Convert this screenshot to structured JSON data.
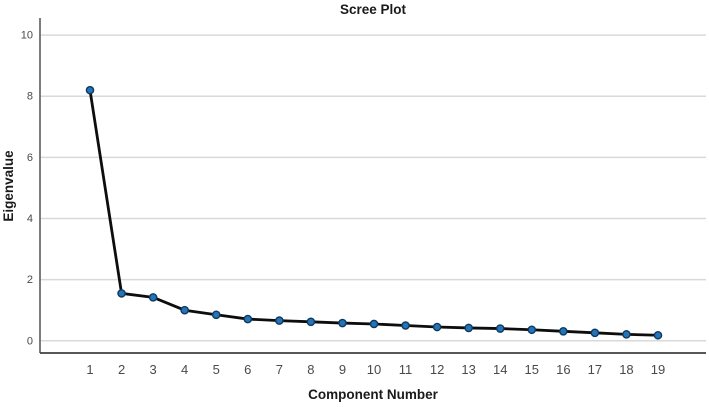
{
  "chart_data": {
    "type": "line",
    "title": "Scree Plot",
    "xlabel": "Component Number",
    "ylabel": "Eigenvalue",
    "series_name": "Eigenvalue",
    "x": [
      1,
      2,
      3,
      4,
      5,
      6,
      7,
      8,
      9,
      10,
      11,
      12,
      13,
      14,
      15,
      16,
      17,
      18,
      19
    ],
    "values": [
      8.2,
      1.55,
      1.42,
      1.0,
      0.85,
      0.71,
      0.66,
      0.62,
      0.58,
      0.55,
      0.5,
      0.45,
      0.42,
      0.4,
      0.36,
      0.31,
      0.26,
      0.21,
      0.18
    ],
    "x_ticks": [
      "1",
      "2",
      "3",
      "4",
      "5",
      "6",
      "7",
      "8",
      "9",
      "10",
      "11",
      "12",
      "13",
      "14",
      "15",
      "16",
      "17",
      "18",
      "19"
    ],
    "y_ticks": [
      0,
      2,
      4,
      6,
      8,
      10
    ],
    "ylim": [
      -0.4,
      10.56
    ],
    "grid": "horizontal",
    "legend": "none",
    "marker": "circle",
    "colors": {
      "line": "#0d0d0d",
      "marker_fill": "#2674b8",
      "marker_stroke": "#0e3a5e",
      "gridline": "#d9d9d9",
      "y_axis_line": "#6e6e6e",
      "x_axis_line": "#404040",
      "tick_text": "#4a4a4a",
      "label_text": "#1a1a1a",
      "background": "#ffffff"
    }
  }
}
